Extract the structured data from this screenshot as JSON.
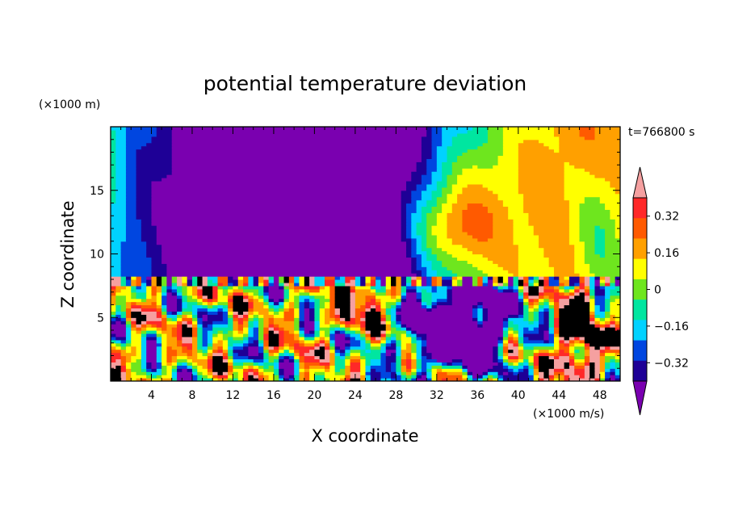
{
  "chart_data": {
    "type": "heatmap",
    "title": "potential temperature deviation",
    "xlabel": "X coordinate",
    "ylabel": "Z coordinate",
    "x_unit": "(×1000 m/s)",
    "y_unit": "(×1000 m)",
    "time_label": "t=766800 s",
    "xlim": [
      0,
      50
    ],
    "ylim": [
      0,
      20
    ],
    "x_ticks": [
      "4",
      "8",
      "12",
      "16",
      "20",
      "24",
      "28",
      "32",
      "36",
      "40",
      "44",
      "48"
    ],
    "y_ticks": [
      "5",
      "10",
      "15"
    ],
    "colorbar": {
      "levels": [
        -0.4,
        -0.32,
        -0.24,
        -0.16,
        -0.08,
        0,
        0.08,
        0.16,
        0.24,
        0.32,
        0.4
      ],
      "labels": [
        "0.32",
        "0.16",
        "0",
        "−0.16",
        "−0.32"
      ],
      "colors_low_to_high": [
        "#7a00b0",
        "#1e0096",
        "#0046e0",
        "#00d2ff",
        "#00e6a0",
        "#6ee61e",
        "#ffff00",
        "#ffa000",
        "#ff5a00",
        "#ff2828",
        "#f5a0a0"
      ],
      "extend": "both"
    }
  }
}
